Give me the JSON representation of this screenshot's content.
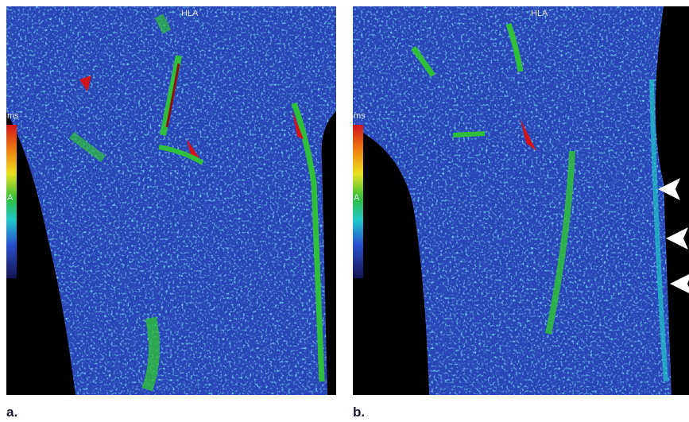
{
  "panels": [
    {
      "label": "a.",
      "orientation": "HLA",
      "unit": "ms",
      "scale_label": "A"
    },
    {
      "label": "b.",
      "orientation": "HLA",
      "unit": "ms",
      "scale_label": "A"
    }
  ]
}
